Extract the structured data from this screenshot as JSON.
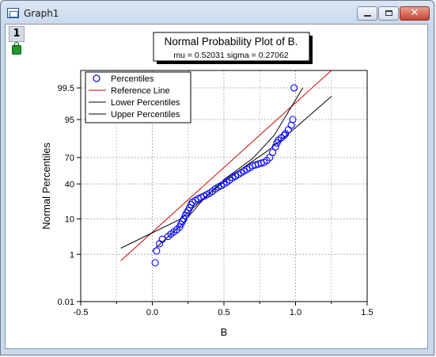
{
  "window": {
    "title": "Graph1",
    "layer_tab": "1"
  },
  "plot": {
    "title": "Normal Probability Plot of B.",
    "subtitle": "mu = 0.52031  sigma = 0.27062"
  },
  "chart_data": {
    "type": "scatter",
    "title": "Normal Probability Plot of B.",
    "subtitle": "mu = 0.52031  sigma = 0.27062",
    "xlabel": "B",
    "ylabel": "Normal Percentiles",
    "xlim": [
      -0.5,
      1.5
    ],
    "x_ticks": [
      -0.5,
      0.0,
      0.5,
      1.0,
      1.5
    ],
    "x_tick_labels": [
      "-0.5",
      "0.0",
      "0.5",
      "1.0",
      "1.5"
    ],
    "y_scale": "probability",
    "ylim_percent": [
      0.01,
      99.9
    ],
    "y_ticks": [
      0.01,
      1,
      10,
      40,
      70,
      95,
      99.5
    ],
    "y_tick_labels": [
      "0.01",
      "1",
      "10",
      "40",
      "70",
      "95",
      "99.5"
    ],
    "grid": true,
    "legend_position": "top-left",
    "legend": [
      "Percentiles",
      "Reference Line",
      "Lower Percentiles",
      "Upper Percentiles"
    ],
    "mu": 0.52031,
    "sigma": 0.27062,
    "series": [
      {
        "name": "Percentiles",
        "kind": "markers",
        "color": "#0000ff",
        "points": [
          [
            0.02,
            0.5
          ],
          [
            0.03,
            1.3
          ],
          [
            0.05,
            2.2
          ],
          [
            0.07,
            3.0
          ],
          [
            0.11,
            3.6
          ],
          [
            0.13,
            4.2
          ],
          [
            0.15,
            4.8
          ],
          [
            0.17,
            5.5
          ],
          [
            0.19,
            6.4
          ],
          [
            0.2,
            7.5
          ],
          [
            0.21,
            8.8
          ],
          [
            0.22,
            10
          ],
          [
            0.23,
            11.8
          ],
          [
            0.24,
            13.5
          ],
          [
            0.25,
            15
          ],
          [
            0.26,
            17
          ],
          [
            0.27,
            19.5
          ],
          [
            0.28,
            21.5
          ],
          [
            0.3,
            23
          ],
          [
            0.32,
            24.5
          ],
          [
            0.34,
            25.8
          ],
          [
            0.36,
            27
          ],
          [
            0.38,
            28.5
          ],
          [
            0.4,
            30
          ],
          [
            0.42,
            32
          ],
          [
            0.44,
            34.5
          ],
          [
            0.46,
            36.5
          ],
          [
            0.48,
            38
          ],
          [
            0.5,
            40
          ],
          [
            0.52,
            42
          ],
          [
            0.54,
            44.5
          ],
          [
            0.56,
            47
          ],
          [
            0.58,
            49
          ],
          [
            0.6,
            51
          ],
          [
            0.62,
            53
          ],
          [
            0.64,
            55
          ],
          [
            0.66,
            57
          ],
          [
            0.68,
            59
          ],
          [
            0.7,
            61
          ],
          [
            0.72,
            62
          ],
          [
            0.74,
            63
          ],
          [
            0.76,
            64
          ],
          [
            0.78,
            65
          ],
          [
            0.8,
            67
          ],
          [
            0.82,
            70
          ],
          [
            0.84,
            75
          ],
          [
            0.86,
            80
          ],
          [
            0.87,
            83
          ],
          [
            0.88,
            85
          ],
          [
            0.9,
            86.5
          ],
          [
            0.92,
            88
          ],
          [
            0.93,
            89
          ],
          [
            0.95,
            91
          ],
          [
            0.97,
            93
          ],
          [
            0.98,
            95
          ],
          [
            0.99,
            99.5
          ]
        ]
      },
      {
        "name": "Reference Line",
        "kind": "line",
        "color": "#cc0000",
        "points": [
          [
            -0.22,
            0.6
          ],
          [
            1.25,
            99.9
          ]
        ]
      },
      {
        "name": "Lower Percentiles",
        "kind": "line",
        "color": "#000000",
        "points": [
          [
            -0.22,
            1.6
          ],
          [
            0.2,
            10
          ],
          [
            0.4,
            30
          ],
          [
            0.6,
            55
          ],
          [
            0.8,
            76
          ],
          [
            1.0,
            92
          ],
          [
            1.25,
            99
          ]
        ]
      },
      {
        "name": "Upper Percentiles",
        "kind": "line",
        "color": "#000000",
        "points": [
          [
            0.0,
            1.3
          ],
          [
            0.2,
            7
          ],
          [
            0.35,
            23
          ],
          [
            0.5,
            45
          ],
          [
            0.7,
            69
          ],
          [
            0.85,
            88
          ],
          [
            1.05,
            99.5
          ]
        ]
      }
    ]
  }
}
